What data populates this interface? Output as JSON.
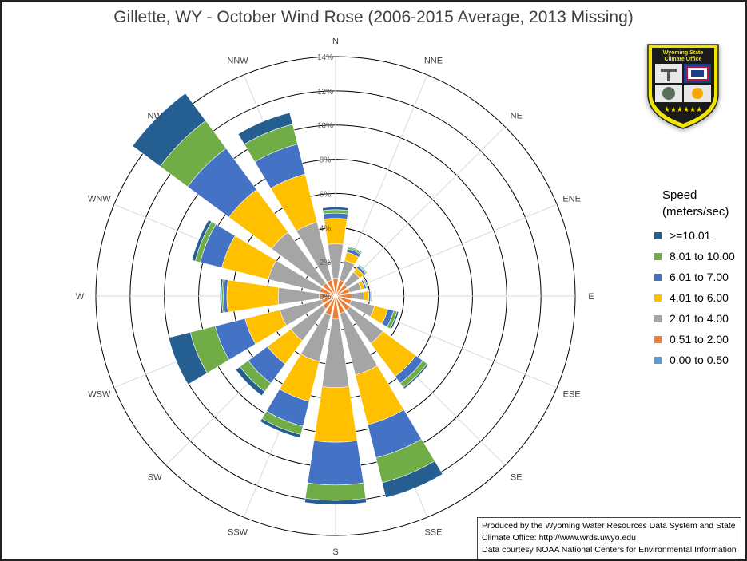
{
  "title": "Gillette, WY - October Wind Rose (2006-2015 Average, 2013 Missing)",
  "legend": {
    "title_line1": "Speed",
    "title_line2": "(meters/sec)"
  },
  "credit": {
    "line1": "Produced by the Wyoming Water Resources Data System and State",
    "line2": "Climate Office: http://www.wrds.uwyo.edu",
    "line3": "Data courtesy NOAA National Centers for Environmental Information"
  },
  "logo": {
    "line1": "Wyoming State",
    "line2": "Climate Office"
  },
  "chart_data": {
    "type": "radar",
    "subtype": "stacked wind rose",
    "title": "Gillette, WY - October Wind Rose (2006-2015 Average, 2013 Missing)",
    "directions": [
      "N",
      "NNE",
      "NE",
      "ENE",
      "E",
      "ESE",
      "SE",
      "SSE",
      "S",
      "SSW",
      "SW",
      "WSW",
      "W",
      "WNW",
      "NW",
      "NNW"
    ],
    "radial_ticks": [
      "0%",
      "2%",
      "4%",
      "6%",
      "8%",
      "10%",
      "12%",
      "14%"
    ],
    "radial_max": 14,
    "legend_position": "right",
    "series": [
      {
        "name": "0.00 to 0.50",
        "color": "#5b9bd5",
        "values": [
          0.05,
          0.05,
          0.05,
          0.05,
          0.05,
          0.05,
          0.05,
          0.05,
          0.05,
          0.05,
          0.05,
          0.05,
          0.05,
          0.05,
          0.05,
          0.05
        ]
      },
      {
        "name": "0.51 to 2.00",
        "color": "#ed7d31",
        "values": [
          1.0,
          0.9,
          0.8,
          0.8,
          0.9,
          0.9,
          1.0,
          1.0,
          1.3,
          1.1,
          0.9,
          0.8,
          0.9,
          0.9,
          0.9,
          0.9
        ]
      },
      {
        "name": "2.01 to 4.00",
        "color": "#a5a5a5",
        "values": [
          2.0,
          1.2,
          0.9,
          0.7,
          0.7,
          1.4,
          2.4,
          3.7,
          4.0,
          2.8,
          2.3,
          2.5,
          2.4,
          3.1,
          3.7,
          3.5
        ]
      },
      {
        "name": "4.01 to 6.00",
        "color": "#ffc000",
        "values": [
          1.5,
          0.5,
          0.3,
          0.2,
          0.3,
          0.8,
          2.4,
          3.0,
          3.2,
          2.4,
          1.7,
          2.1,
          3.0,
          2.8,
          3.1,
          2.9
        ]
      },
      {
        "name": "6.01 to 7.00",
        "color": "#4472c4",
        "values": [
          0.3,
          0.2,
          0.15,
          0.1,
          0.1,
          0.35,
          0.5,
          2.0,
          2.5,
          1.5,
          1.4,
          1.8,
          0.2,
          1.3,
          3.0,
          1.8
        ]
      },
      {
        "name": "8.01 to 10.00",
        "color": "#70ad47",
        "values": [
          0.2,
          0.1,
          0.05,
          0.05,
          0.05,
          0.2,
          0.3,
          1.5,
          0.9,
          0.5,
          0.6,
          1.5,
          0.1,
          0.3,
          2.0,
          1.2
        ]
      },
      {
        "name": ">=10.01",
        "color": "#255e91",
        "values": [
          0.15,
          0.05,
          0.05,
          0.05,
          0.05,
          0.1,
          0.1,
          0.9,
          0.25,
          0.2,
          0.3,
          1.3,
          0.1,
          0.2,
          2.0,
          0.7
        ]
      }
    ]
  }
}
